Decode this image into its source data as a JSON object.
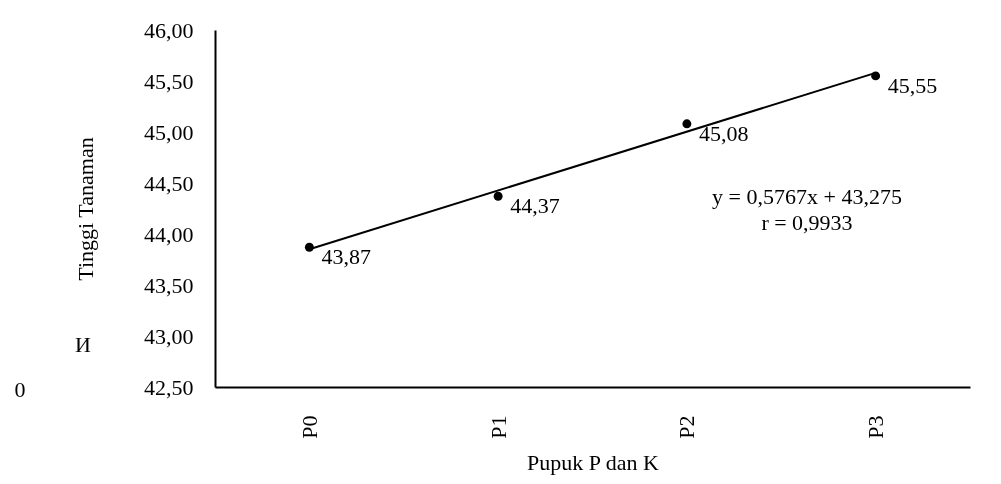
{
  "chart_data": {
    "type": "scatter",
    "xlabel": "Pupuk P dan K",
    "ylabel": "Tinggi  Tanaman",
    "categories": [
      "P0",
      "P1",
      "P2",
      "P3"
    ],
    "series": [
      {
        "color": "#000000",
        "marker": "circle",
        "values": [
          43.87,
          44.37,
          45.08,
          45.55
        ],
        "value_labels": [
          "43,87",
          "44,37",
          "45,08",
          "45,55"
        ]
      },
      {
        "type": "line",
        "color": "#000000",
        "x": [
          "P0",
          "P3"
        ],
        "values": [
          43.85,
          45.58
        ]
      }
    ],
    "ylim": [
      42.5,
      46.0
    ],
    "yticks": [
      {
        "value": 42.5,
        "label": "42,50"
      },
      {
        "value": 43.0,
        "label": "43,00"
      },
      {
        "value": 43.5,
        "label": "43,50"
      },
      {
        "value": 44.0,
        "label": "44,00"
      },
      {
        "value": 44.5,
        "label": "44,50"
      },
      {
        "value": 45.0,
        "label": "45,00"
      },
      {
        "value": 45.5,
        "label": "45,50"
      },
      {
        "value": 46.0,
        "label": "46,00"
      }
    ],
    "grid": false,
    "annotations": [
      "y = 0,5767x + 43,275",
      "r = 0,9933",
      "И",
      "0"
    ]
  }
}
